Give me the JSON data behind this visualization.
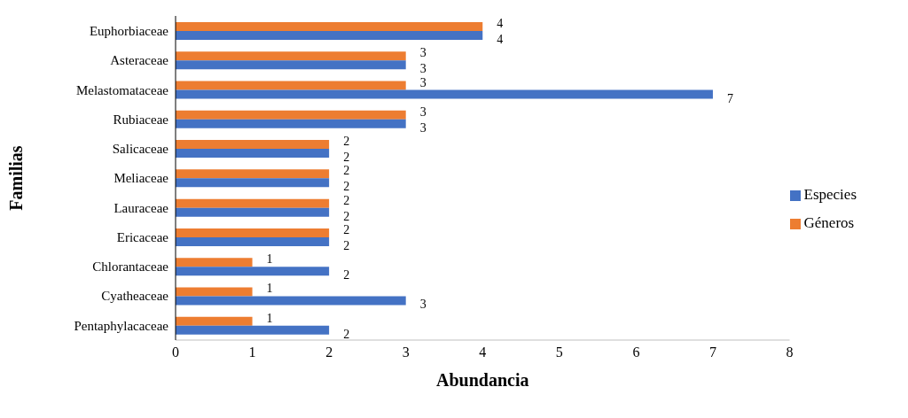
{
  "chart_data": {
    "type": "bar",
    "orientation": "horizontal",
    "xlabel": "Abundancia",
    "ylabel": "Familias",
    "categories": [
      "Euphorbiaceae",
      "Asteraceae",
      "Melastomataceae",
      "Rubiaceae",
      "Salicaceae",
      "Meliaceae",
      "Lauraceae",
      "Ericaceae",
      "Chlorantaceae",
      "Cyatheaceae",
      "Pentaphylacaceae"
    ],
    "series": [
      {
        "name": "Géneros",
        "color": "#ed7d31",
        "values": [
          4,
          3,
          3,
          3,
          2,
          2,
          2,
          2,
          1,
          1,
          1
        ]
      },
      {
        "name": "Especies",
        "color": "#4472c4",
        "values": [
          4,
          3,
          7,
          3,
          2,
          2,
          2,
          2,
          2,
          3,
          2
        ]
      }
    ],
    "xlim": [
      0,
      8
    ],
    "xticks": [
      0,
      1,
      2,
      3,
      4,
      5,
      6,
      7,
      8
    ],
    "data_labels": true,
    "legend": "right",
    "grid": false
  }
}
